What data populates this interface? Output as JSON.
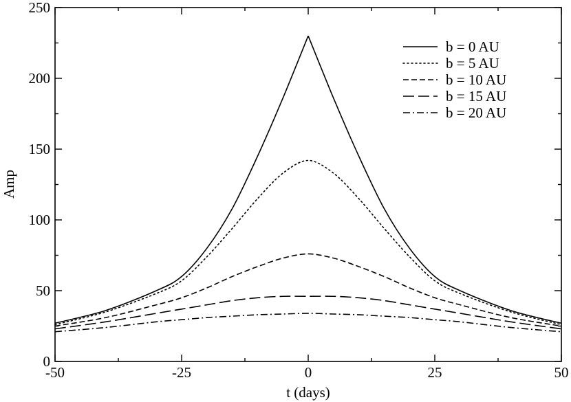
{
  "chart_data": {
    "type": "line",
    "title": "",
    "xlabel": "t (days)",
    "ylabel": "Amp",
    "xlim": [
      -50,
      50
    ],
    "ylim": [
      0,
      250
    ],
    "xticks": [
      -50,
      -25,
      0,
      25,
      50
    ],
    "yticks": [
      0,
      50,
      100,
      150,
      200,
      250
    ],
    "xtick_labels": [
      "-50",
      "-25",
      "0",
      "25",
      "50"
    ],
    "ytick_labels": [
      "0",
      "50",
      "100",
      "150",
      "200",
      "250"
    ],
    "grid": false,
    "legend_position": "top-right",
    "x": [
      -50,
      -40,
      -30,
      -25,
      -20,
      -15,
      -10,
      -5,
      0,
      5,
      10,
      15,
      20,
      25,
      30,
      40,
      50
    ],
    "series": [
      {
        "name": "b = 0 AU",
        "dash": "solid",
        "values": [
          27,
          36,
          50,
          60,
          80,
          108,
          145,
          186,
          230,
          186,
          145,
          108,
          80,
          60,
          50,
          36,
          27
        ]
      },
      {
        "name": "b = 5 AU",
        "dash": "dotted",
        "values": [
          26,
          35,
          48,
          57,
          74,
          94,
          115,
          133,
          142,
          133,
          115,
          94,
          74,
          57,
          48,
          35,
          26
        ]
      },
      {
        "name": "b = 10 AU",
        "dash": "short-dash",
        "values": [
          25,
          31,
          40,
          45,
          52,
          60,
          67,
          73,
          76,
          73,
          67,
          60,
          52,
          45,
          40,
          31,
          25
        ]
      },
      {
        "name": "b = 15 AU",
        "dash": "long-dash",
        "values": [
          23,
          28,
          34,
          37,
          40,
          43,
          45,
          46,
          46,
          46,
          45,
          43,
          40,
          37,
          34,
          28,
          23
        ]
      },
      {
        "name": "b = 20 AU",
        "dash": "dash-dot",
        "values": [
          21,
          24,
          28,
          29.5,
          31,
          32,
          33,
          33.5,
          34,
          33.5,
          33,
          32,
          31,
          29.5,
          28,
          24,
          21
        ]
      }
    ]
  },
  "colors": {
    "line": "#000000",
    "background": "#ffffff"
  }
}
